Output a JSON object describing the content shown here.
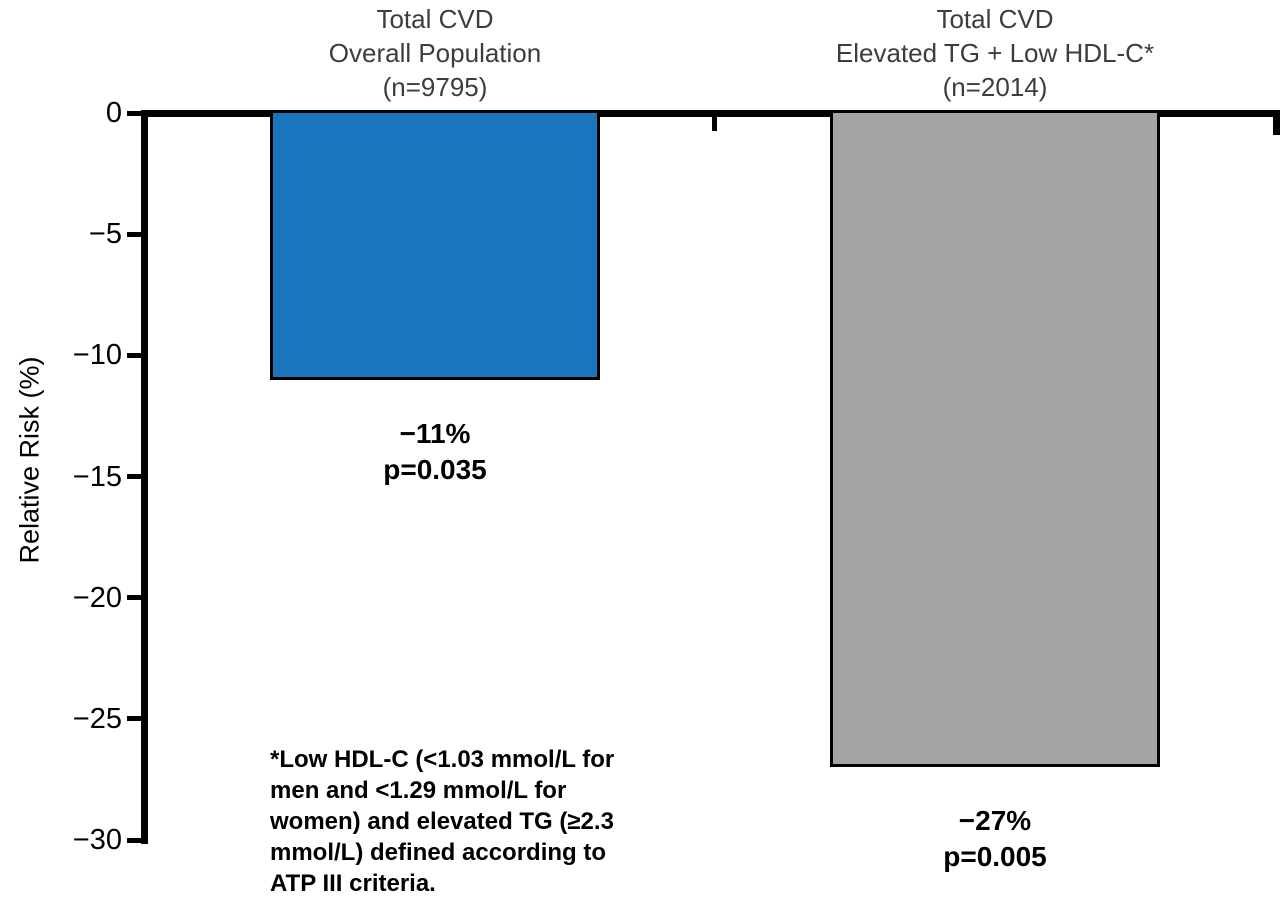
{
  "chart_data": {
    "type": "bar",
    "title": "",
    "xlabel": "",
    "ylabel": "Relative Risk (%)",
    "ylim": [
      -30,
      0
    ],
    "grid": false,
    "legend": false,
    "yticks": [
      0,
      -5,
      -10,
      -15,
      -20,
      -25,
      -30
    ],
    "ytick_labels": [
      "0",
      "−5",
      "−10",
      "−15",
      "−20",
      "−25",
      "−30"
    ],
    "categories": [
      "Total CVD Overall Population (n=9795)",
      "Total CVD Elevated TG + Low HDL-C* (n=2014)"
    ],
    "values": [
      -11,
      -27
    ],
    "bars": [
      {
        "header": [
          "Total CVD",
          "Overall Population",
          "(n=9795)"
        ],
        "value": -11,
        "value_label": "−11%",
        "p_value_label": "p=0.035",
        "color": "#1b75bc"
      },
      {
        "header": [
          "Total CVD",
          "Elevated TG + Low HDL-C*",
          "(n=2014)"
        ],
        "value": -27,
        "value_label": "−27%",
        "p_value_label": "p=0.005",
        "color": "#a5a3a6"
      }
    ],
    "footnote_lines": [
      "*Low HDL-C (<1.03 mmol/L for",
      "men and <1.29 mmol/L for",
      "women) and elevated TG (≥2.3",
      "mmol/L) defined according to",
      "ATP III criteria."
    ]
  }
}
